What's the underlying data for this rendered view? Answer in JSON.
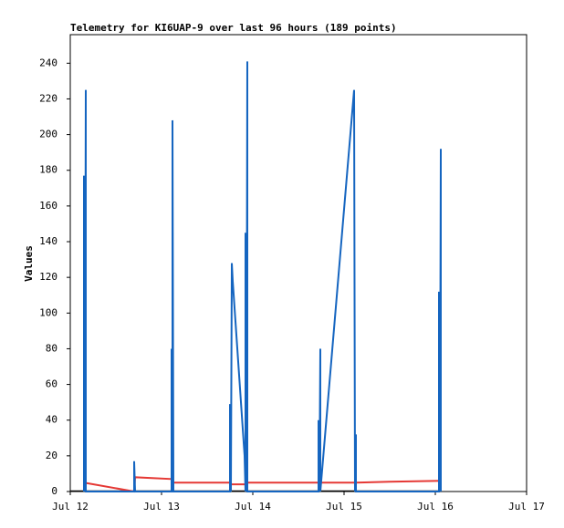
{
  "chart_data": {
    "type": "line",
    "title": "Telemetry for KI6UAP-9 over last 96 hours (189 points)",
    "y_label": "Values",
    "xlim": [
      0,
      5
    ],
    "xticks": [
      {
        "value": 0,
        "label": "Jul 12"
      },
      {
        "value": 1,
        "label": "Jul 13"
      },
      {
        "value": 2,
        "label": "Jul 14"
      },
      {
        "value": 3,
        "label": "Jul 15"
      },
      {
        "value": 4,
        "label": "Jul 16"
      },
      {
        "value": 5,
        "label": "Jul 17"
      }
    ],
    "ylim": [
      0,
      256
    ],
    "yticks": [
      0,
      20,
      40,
      60,
      80,
      100,
      120,
      140,
      160,
      180,
      200,
      220,
      240
    ],
    "series": [
      {
        "name": "blue",
        "color": "#1565c0",
        "x": [
          0.15,
          0.15,
          0.16,
          0.17,
          0.17,
          0.7,
          0.7,
          0.71,
          1.11,
          1.11,
          1.12,
          1.12,
          1.13,
          1.75,
          1.75,
          1.76,
          1.77,
          1.78,
          1.91,
          1.92,
          1.92,
          1.93,
          1.94,
          1.94,
          2.72,
          2.72,
          2.73,
          2.74,
          2.74,
          3.11,
          3.12,
          3.13,
          3.13,
          4.04,
          4.04,
          4.05,
          4.06,
          4.06
        ],
        "values": [
          0,
          177,
          0,
          225,
          0,
          0,
          17,
          0,
          0,
          80,
          0,
          208,
          0,
          0,
          49,
          0,
          128,
          118,
          20,
          0,
          145,
          0,
          241,
          0,
          0,
          40,
          0,
          80,
          0,
          225,
          0,
          32,
          0,
          0,
          112,
          0,
          192,
          0
        ]
      },
      {
        "name": "red",
        "color": "#e53935",
        "x": [
          0.15,
          0.7,
          0.71,
          1.11,
          1.12,
          1.75,
          1.76,
          1.92,
          1.94,
          2.73,
          3.12,
          3.13,
          3.5,
          4.06
        ],
        "values": [
          5,
          0,
          8,
          7,
          5,
          5,
          4,
          4,
          5,
          5,
          5,
          5,
          5.5,
          6
        ]
      }
    ]
  }
}
